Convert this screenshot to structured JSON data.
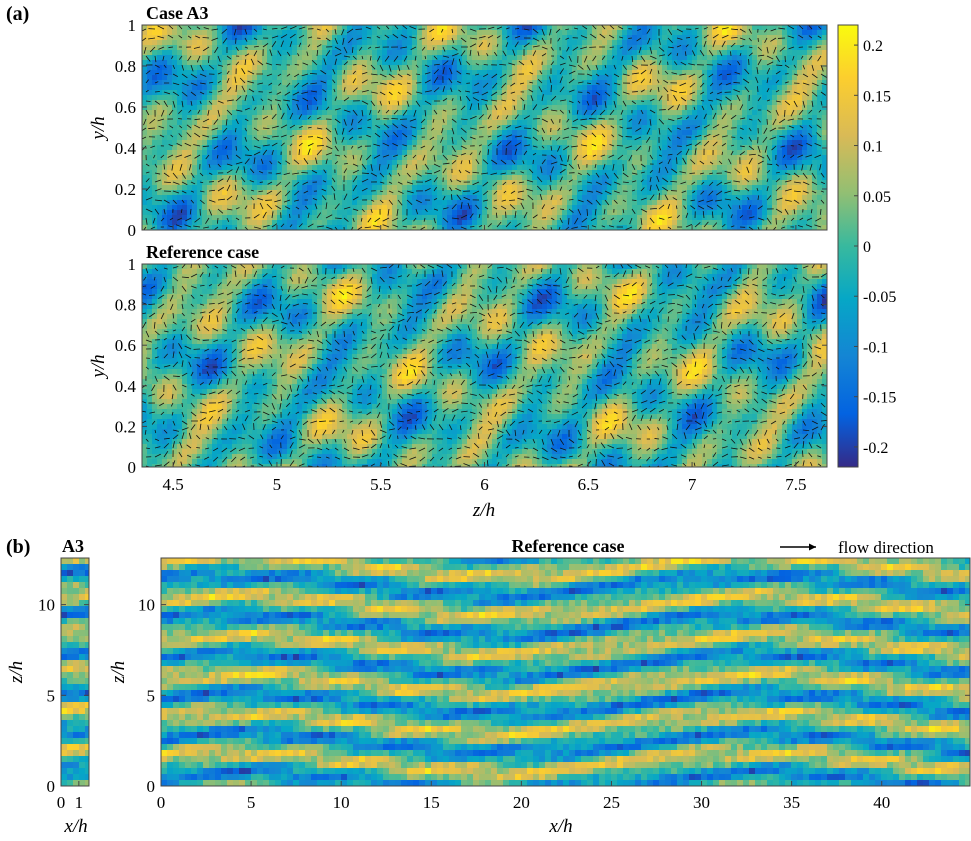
{
  "figure": {
    "panel_a_label": "(a)",
    "panel_b_label": "(b)",
    "flow_direction_label": "flow direction"
  },
  "colormap": {
    "name": "parula",
    "stops": [
      "#352a87",
      "#0363e1",
      "#1485d4",
      "#06a7c6",
      "#38b99e",
      "#92bf73",
      "#d9ba56",
      "#fcce2e",
      "#f9fb0e"
    ]
  },
  "chart_data": [
    {
      "type": "heatmap",
      "panel": "(a)",
      "title": "Case A3",
      "xlabel": "",
      "ylabel": "y/h",
      "xlim": [
        4.35,
        7.65
      ],
      "ylim": [
        0,
        1
      ],
      "xticks": [],
      "yticks": [
        "0",
        "0.2",
        "0.4",
        "0.6",
        "0.8",
        "1"
      ],
      "overlay": "velocity vectors"
    },
    {
      "type": "heatmap",
      "panel": "(a)",
      "title": "Reference case",
      "xlabel": "z/h",
      "ylabel": "y/h",
      "xlim": [
        4.35,
        7.65
      ],
      "ylim": [
        0,
        1
      ],
      "xticks": [
        "4.5",
        "5",
        "5.5",
        "6",
        "6.5",
        "7",
        "7.5"
      ],
      "yticks": [
        "0",
        "0.2",
        "0.4",
        "0.6",
        "0.8",
        "1"
      ],
      "overlay": "velocity vectors"
    },
    {
      "type": "heatmap",
      "panel": "(b)",
      "title": "A3",
      "xlabel": "x/h",
      "ylabel": "z/h",
      "xlim": [
        0,
        1.57
      ],
      "ylim": [
        0,
        12.57
      ],
      "xticks": [
        "0",
        "1"
      ],
      "yticks": [
        "0",
        "5",
        "10"
      ]
    },
    {
      "type": "heatmap",
      "panel": "(b)",
      "title": "Reference case",
      "xlabel": "x/h",
      "ylabel": "z/h",
      "xlim": [
        0,
        44.9
      ],
      "ylim": [
        0,
        12.57
      ],
      "xticks": [
        "0",
        "5",
        "10",
        "15",
        "20",
        "25",
        "30",
        "35",
        "40"
      ],
      "yticks": [
        "0",
        "5",
        "10"
      ]
    }
  ],
  "colorbar": {
    "range": [
      -0.22,
      0.22
    ],
    "ticks": [
      "0.2",
      "0.15",
      "0.1",
      "0.05",
      "0",
      "-0.05",
      "-0.1",
      "-0.15",
      "-0.2"
    ]
  }
}
